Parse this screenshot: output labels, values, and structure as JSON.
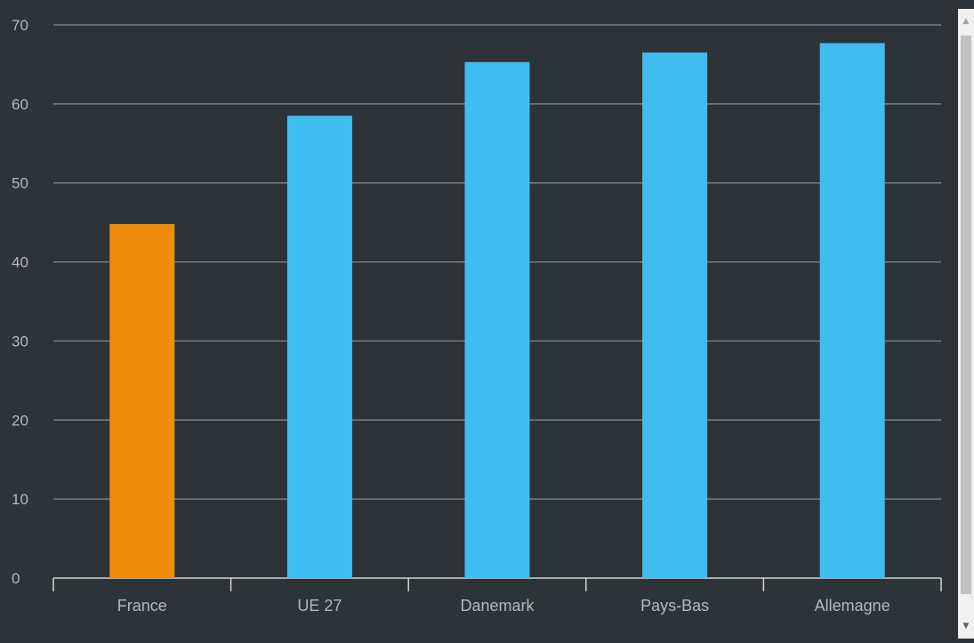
{
  "chart_data": {
    "type": "bar",
    "categories": [
      "France",
      "UE 27",
      "Danemark",
      "Pays-Bas",
      "Allemagne"
    ],
    "values": [
      44.8,
      58.5,
      65.3,
      66.5,
      67.7
    ],
    "bar_colors": [
      "#f08c0c",
      "#40bdf0",
      "#40bdf0",
      "#40bdf0",
      "#40bdf0"
    ],
    "ylim": [
      0,
      70
    ],
    "yticks": [
      0,
      10,
      20,
      30,
      40,
      50,
      60,
      70
    ],
    "grid": true,
    "title": "",
    "xlabel": "",
    "ylabel": ""
  },
  "scrollbar": {
    "up_icon": "▲",
    "down_icon": "▼"
  }
}
